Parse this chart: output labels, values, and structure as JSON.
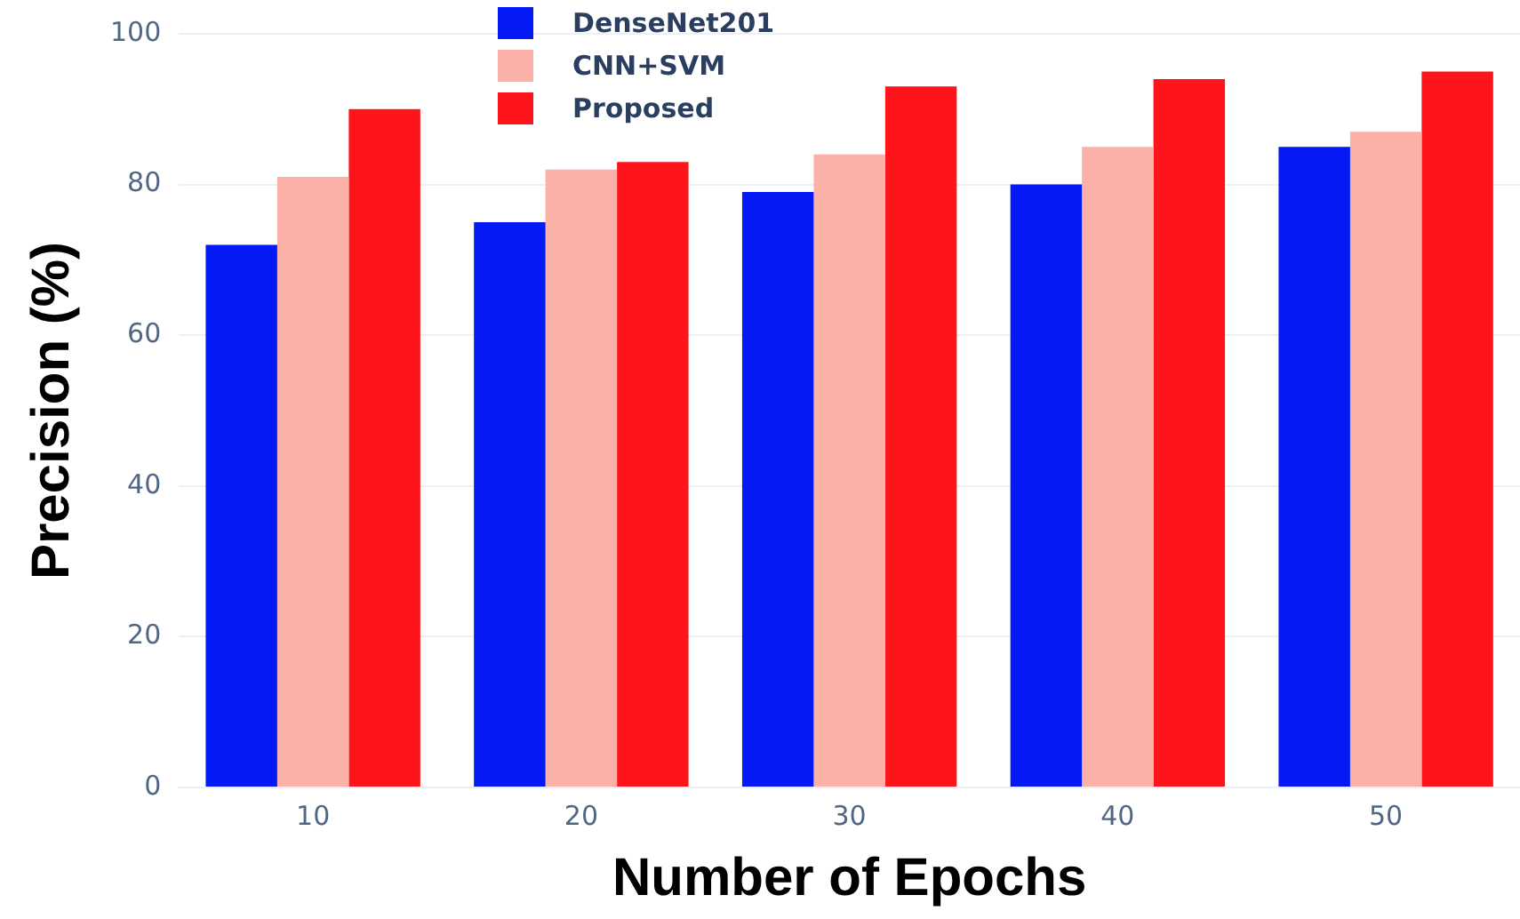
{
  "chart_data": {
    "type": "bar",
    "xlabel": "Number of Epochs",
    "ylabel": "Precision (%)",
    "categories": [
      "10",
      "20",
      "30",
      "40",
      "50"
    ],
    "series": [
      {
        "name": "DenseNet201",
        "color": "#0519f5",
        "values": [
          72,
          75,
          79,
          80,
          85
        ]
      },
      {
        "name": "CNN+SVM",
        "color": "#fcb1a8",
        "values": [
          81,
          82,
          84,
          85,
          87
        ]
      },
      {
        "name": "Proposed",
        "color": "#fd151b",
        "values": [
          90,
          83,
          93,
          94,
          95
        ]
      }
    ],
    "ylim": [
      0,
      100
    ],
    "yticks": [
      0,
      20,
      40,
      60,
      80,
      100
    ],
    "grid": "y",
    "legend": "top"
  }
}
